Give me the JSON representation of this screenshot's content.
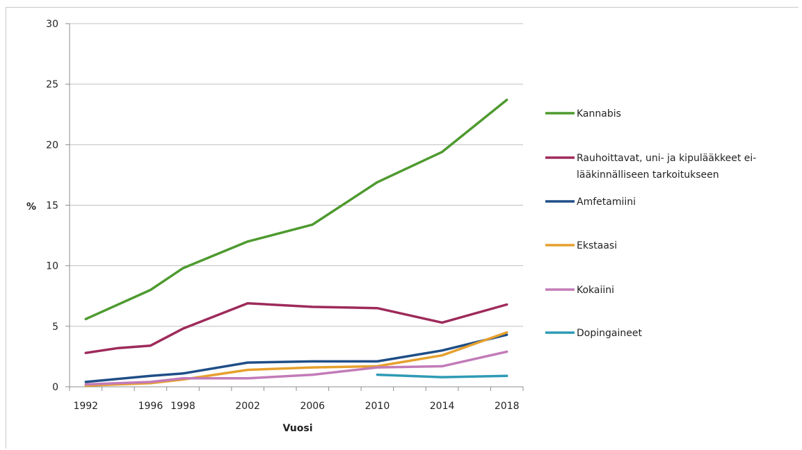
{
  "chart_data": {
    "type": "line",
    "xlabel": "Vuosi",
    "ylabel": "%",
    "xlim": [
      1991,
      2019
    ],
    "ylim": [
      0,
      30
    ],
    "y_ticks": [
      0,
      5,
      10,
      15,
      20,
      25,
      30
    ],
    "x_ticks": [
      1992,
      1996,
      1998,
      2002,
      2006,
      2010,
      2014,
      2018
    ],
    "grid": "horizontal",
    "legend_position": "right",
    "series": [
      {
        "name": "Kannabis",
        "color": "#4e9a2f",
        "x": [
          1992,
          1996,
          1998,
          2002,
          2006,
          2010,
          2014,
          2018
        ],
        "y": [
          5.6,
          8.0,
          9.8,
          12.0,
          13.4,
          16.9,
          19.4,
          23.7
        ]
      },
      {
        "name": "Rauhoittavat, uni- ja kipulääkkeet ei-lääkinnälliseen tarkoitukseen",
        "legend_lines": [
          "Rauhoittavat, uni- ja kipulääkkeet ei-",
          "lääkinnälliseen tarkoitukseen"
        ],
        "color": "#9e2a5a",
        "x": [
          1992,
          1994,
          1996,
          1998,
          2002,
          2006,
          2010,
          2014,
          2018
        ],
        "y": [
          2.8,
          3.2,
          3.4,
          4.8,
          6.9,
          6.6,
          6.5,
          5.3,
          6.8
        ]
      },
      {
        "name": "Amfetamiini",
        "color": "#1f4e87",
        "x": [
          1992,
          1996,
          1998,
          2002,
          2006,
          2010,
          2014,
          2018
        ],
        "y": [
          0.4,
          0.9,
          1.1,
          2.0,
          2.1,
          2.1,
          3.0,
          4.3
        ]
      },
      {
        "name": "Ekstaasi",
        "color": "#e6a02d",
        "x": [
          1992,
          1996,
          1998,
          2002,
          2006,
          2010,
          2014,
          2018
        ],
        "y": [
          0.1,
          0.3,
          0.6,
          1.4,
          1.6,
          1.7,
          2.6,
          4.5
        ]
      },
      {
        "name": "Kokaiini",
        "color": "#c27bb8",
        "x": [
          1992,
          1996,
          1998,
          2002,
          2006,
          2010,
          2014,
          2018
        ],
        "y": [
          0.2,
          0.4,
          0.7,
          0.7,
          1.0,
          1.6,
          1.7,
          2.9
        ]
      },
      {
        "name": "Dopingaineet",
        "color": "#2e9bb5",
        "x": [
          2010,
          2014,
          2018
        ],
        "y": [
          1.0,
          0.8,
          0.9
        ]
      }
    ]
  }
}
